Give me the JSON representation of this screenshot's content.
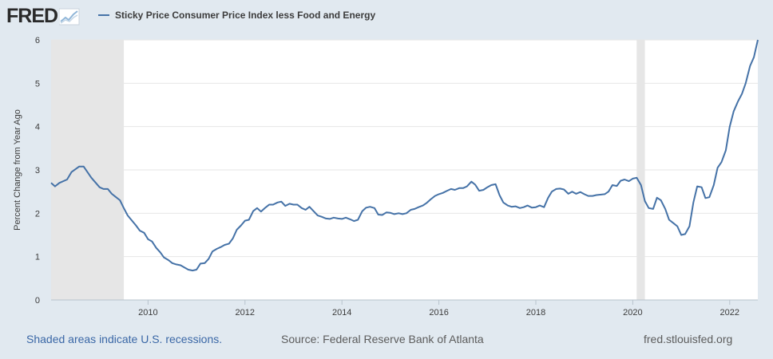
{
  "header": {
    "logo_text": "FRED",
    "series_name": "Sticky Price Consumer Price Index less Food and Energy",
    "series_color": "#4572a7"
  },
  "footer": {
    "recessions_note": "Shaded areas indicate U.S. recessions.",
    "source": "Source: Federal Reserve Bank of Atlanta",
    "site": "fred.stlouisfed.org"
  },
  "chart_data": {
    "type": "line",
    "title": "Sticky Price Consumer Price Index less Food and Energy",
    "xlabel": "",
    "ylabel": "Percent Change from Year Ago",
    "xlim": [
      2008.0,
      2022.58
    ],
    "ylim": [
      0,
      6
    ],
    "yticks": [
      0,
      1,
      2,
      3,
      4,
      5,
      6
    ],
    "xticks": [
      2010,
      2012,
      2014,
      2016,
      2018,
      2020,
      2022
    ],
    "grid": true,
    "recessions": [
      [
        2008.0,
        2009.5
      ],
      [
        2020.08,
        2020.25
      ]
    ],
    "series": [
      {
        "name": "Sticky Price Consumer Price Index less Food and Energy",
        "color": "#4572a7",
        "x": [
          2008.0,
          2008.08,
          2008.17,
          2008.33,
          2008.42,
          2008.58,
          2008.67,
          2008.75,
          2008.83,
          2009.0,
          2009.08,
          2009.17,
          2009.25,
          2009.33,
          2009.42,
          2009.5,
          2009.58,
          2009.75,
          2009.83,
          2009.92,
          2010.0,
          2010.08,
          2010.17,
          2010.25,
          2010.33,
          2010.42,
          2010.5,
          2010.58,
          2010.67,
          2010.75,
          2010.83,
          2010.92,
          2011.0,
          2011.08,
          2011.17,
          2011.25,
          2011.33,
          2011.42,
          2011.5,
          2011.58,
          2011.67,
          2011.75,
          2011.83,
          2011.92,
          2012.0,
          2012.08,
          2012.17,
          2012.25,
          2012.33,
          2012.42,
          2012.5,
          2012.58,
          2012.67,
          2012.75,
          2012.83,
          2012.92,
          2013.0,
          2013.08,
          2013.17,
          2013.25,
          2013.33,
          2013.5,
          2013.58,
          2013.67,
          2013.75,
          2013.83,
          2013.92,
          2014.0,
          2014.08,
          2014.17,
          2014.25,
          2014.33,
          2014.42,
          2014.5,
          2014.58,
          2014.67,
          2014.75,
          2014.83,
          2014.92,
          2015.0,
          2015.08,
          2015.17,
          2015.25,
          2015.33,
          2015.42,
          2015.5,
          2015.58,
          2015.67,
          2015.75,
          2015.83,
          2015.92,
          2016.0,
          2016.08,
          2016.17,
          2016.25,
          2016.33,
          2016.42,
          2016.5,
          2016.58,
          2016.67,
          2016.75,
          2016.83,
          2016.92,
          2017.0,
          2017.08,
          2017.17,
          2017.25,
          2017.33,
          2017.42,
          2017.5,
          2017.58,
          2017.67,
          2017.75,
          2017.83,
          2017.92,
          2018.0,
          2018.08,
          2018.17,
          2018.25,
          2018.33,
          2018.42,
          2018.5,
          2018.58,
          2018.67,
          2018.75,
          2018.83,
          2018.92,
          2019.0,
          2019.08,
          2019.17,
          2019.25,
          2019.33,
          2019.42,
          2019.5,
          2019.58,
          2019.67,
          2019.75,
          2019.83,
          2019.92,
          2020.0,
          2020.08,
          2020.17,
          2020.25,
          2020.33,
          2020.42,
          2020.5,
          2020.58,
          2020.67,
          2020.75,
          2020.83,
          2020.92,
          2021.0,
          2021.08,
          2021.17,
          2021.25,
          2021.33,
          2021.42,
          2021.5,
          2021.58,
          2021.67,
          2021.75,
          2021.83,
          2021.92,
          2022.0,
          2022.08,
          2022.17,
          2022.25,
          2022.33,
          2022.42,
          2022.5,
          2022.58
        ],
        "values": [
          2.7,
          2.62,
          2.7,
          2.78,
          2.95,
          3.08,
          3.08,
          2.95,
          2.82,
          2.6,
          2.56,
          2.56,
          2.45,
          2.38,
          2.3,
          2.12,
          1.95,
          1.72,
          1.6,
          1.55,
          1.4,
          1.35,
          1.2,
          1.1,
          0.98,
          0.92,
          0.85,
          0.82,
          0.8,
          0.75,
          0.7,
          0.68,
          0.7,
          0.84,
          0.85,
          0.95,
          1.12,
          1.18,
          1.22,
          1.27,
          1.3,
          1.42,
          1.62,
          1.72,
          1.83,
          1.85,
          2.05,
          2.12,
          2.04,
          2.13,
          2.2,
          2.2,
          2.25,
          2.27,
          2.17,
          2.22,
          2.2,
          2.2,
          2.12,
          2.08,
          2.15,
          1.95,
          1.92,
          1.88,
          1.87,
          1.9,
          1.88,
          1.87,
          1.9,
          1.86,
          1.82,
          1.85,
          2.05,
          2.13,
          2.15,
          2.12,
          1.97,
          1.96,
          2.02,
          2.01,
          1.98,
          2.0,
          1.98,
          2.0,
          2.08,
          2.1,
          2.14,
          2.18,
          2.24,
          2.32,
          2.4,
          2.44,
          2.47,
          2.52,
          2.56,
          2.54,
          2.58,
          2.58,
          2.62,
          2.73,
          2.66,
          2.52,
          2.54,
          2.6,
          2.65,
          2.67,
          2.42,
          2.25,
          2.18,
          2.15,
          2.16,
          2.12,
          2.14,
          2.18,
          2.13,
          2.14,
          2.18,
          2.14,
          2.35,
          2.5,
          2.56,
          2.57,
          2.55,
          2.45,
          2.5,
          2.45,
          2.49,
          2.44,
          2.4,
          2.4,
          2.42,
          2.43,
          2.44,
          2.5,
          2.65,
          2.63,
          2.75,
          2.78,
          2.74,
          2.8,
          2.82,
          2.65,
          2.28,
          2.12,
          2.1,
          2.36,
          2.3,
          2.1,
          1.85,
          1.78,
          1.7,
          1.5,
          1.52,
          1.7,
          2.25,
          2.62,
          2.6,
          2.35,
          2.37,
          2.65,
          3.05,
          3.18,
          3.45,
          4.0,
          4.35,
          4.58,
          4.75,
          5.0,
          5.4,
          5.6,
          6.0
        ]
      }
    ]
  }
}
